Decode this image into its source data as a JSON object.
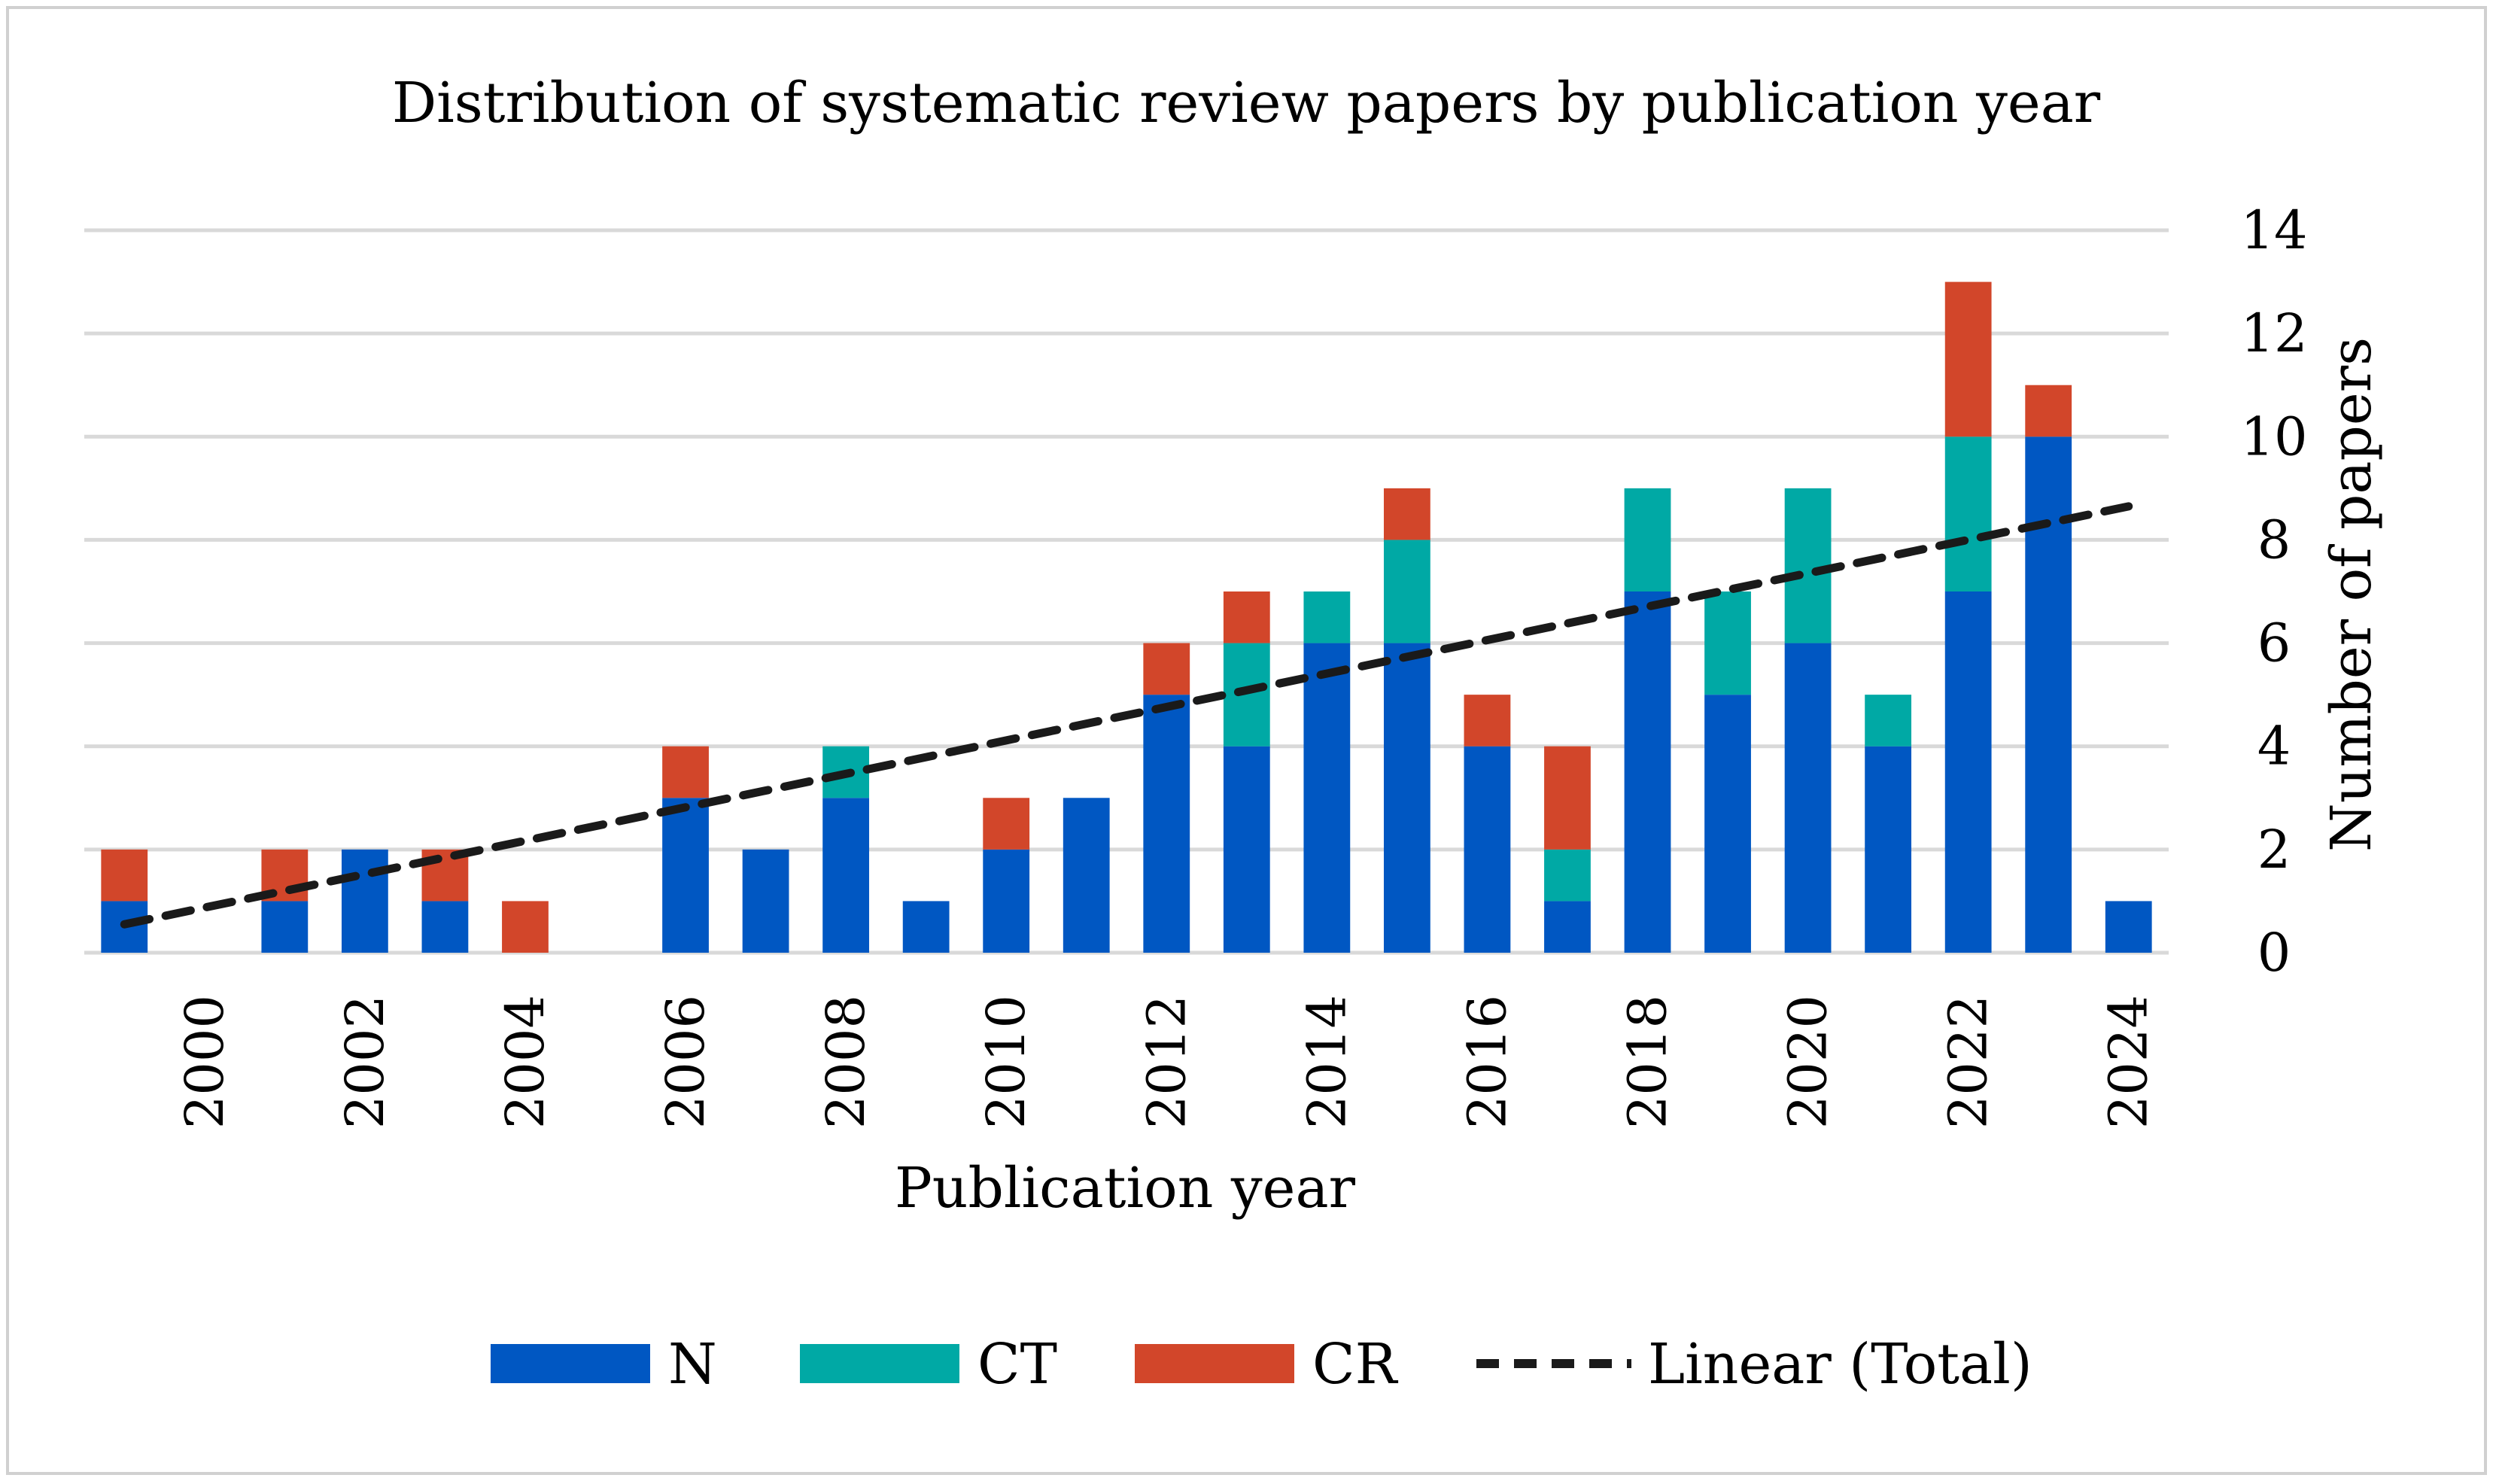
{
  "chart_data": {
    "type": "bar",
    "stacked": true,
    "title": "Distribution of systematic review papers by publication year",
    "xlabel": "Publication year",
    "ylabel": "Number of papers",
    "ylim": [
      0,
      14
    ],
    "yticks": [
      0,
      2,
      4,
      6,
      8,
      10,
      12,
      14
    ],
    "y_axis_side": "right",
    "grid": true,
    "legend_position": "bottom",
    "categories": [
      1999,
      2000,
      2001,
      2002,
      2003,
      2004,
      2005,
      2006,
      2007,
      2008,
      2009,
      2010,
      2011,
      2012,
      2013,
      2014,
      2015,
      2016,
      2017,
      2018,
      2019,
      2020,
      2021,
      2022,
      2023,
      2024
    ],
    "xtick_labels": [
      "2000",
      "2002",
      "2004",
      "2006",
      "2008",
      "2010",
      "2012",
      "2014",
      "2016",
      "2018",
      "2020",
      "2022",
      "2024"
    ],
    "series": [
      {
        "name": "N",
        "color": "#0057C2",
        "values": [
          1,
          0,
          1,
          2,
          1,
          0,
          0,
          3,
          2,
          3,
          1,
          2,
          3,
          5,
          4,
          6,
          6,
          4,
          1,
          7,
          5,
          6,
          4,
          7,
          10,
          1
        ]
      },
      {
        "name": "CT",
        "color": "#00A9A5",
        "values": [
          0,
          0,
          0,
          0,
          0,
          0,
          0,
          0,
          0,
          1,
          0,
          0,
          0,
          0,
          2,
          1,
          2,
          0,
          1,
          2,
          2,
          3,
          1,
          3,
          0,
          0
        ]
      },
      {
        "name": "CR",
        "color": "#D2462A",
        "values": [
          1,
          0,
          1,
          0,
          1,
          1,
          0,
          1,
          0,
          0,
          0,
          1,
          0,
          1,
          1,
          0,
          1,
          1,
          2,
          0,
          0,
          0,
          0,
          3,
          1,
          0
        ]
      }
    ],
    "trendline": {
      "name": "Linear (Total)",
      "of_series": "Total",
      "color": "#1a1a1a",
      "start_value": 0.55,
      "end_value": 8.65
    }
  }
}
